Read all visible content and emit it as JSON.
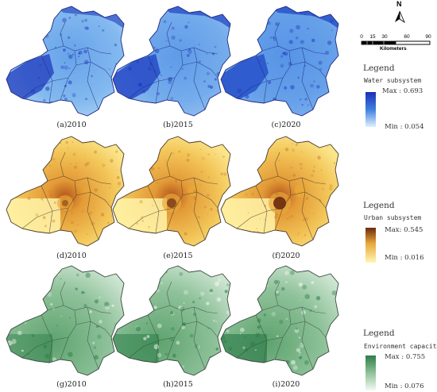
{
  "captions": {
    "water": [
      "(a)2010",
      "(b)2015",
      "(c)2020"
    ],
    "urban": [
      "(d)2010",
      "(e)2015",
      "(f)2020"
    ],
    "env": [
      "(g)2010",
      "(h)2015",
      "(i)2020"
    ]
  },
  "north_label": "N",
  "scale_bar": {
    "ticks": [
      "0",
      "15",
      "30",
      "60",
      "90"
    ],
    "unit": "Kilometers"
  },
  "legends": {
    "water": {
      "title": "Legend",
      "subtitle": "Water subsystem",
      "max": "Max : 0.693",
      "min": "Min : 0.054"
    },
    "urban": {
      "title": "Legend",
      "subtitle": "Urban subsystem",
      "max": "Max: 0.545",
      "min": "Min : 0.016"
    },
    "env": {
      "title": "Legend",
      "subtitle": "Environment capacity",
      "max": "Max : 0.755",
      "min": "Min : 0.076"
    }
  },
  "colors": {
    "water": {
      "dark": "#1a2fb8",
      "mid": "#3f7fe0",
      "light": "#cfe8fb",
      "outline": "#1e2a80"
    },
    "urban": {
      "dark": "#6b2a10",
      "mid": "#e8a93a",
      "light": "#fff3a8",
      "outline": "#4a3a2a"
    },
    "env": {
      "dark": "#2e7d4a",
      "mid": "#7fb889",
      "light": "#eef7ef",
      "outline": "#3a4a3e"
    }
  }
}
